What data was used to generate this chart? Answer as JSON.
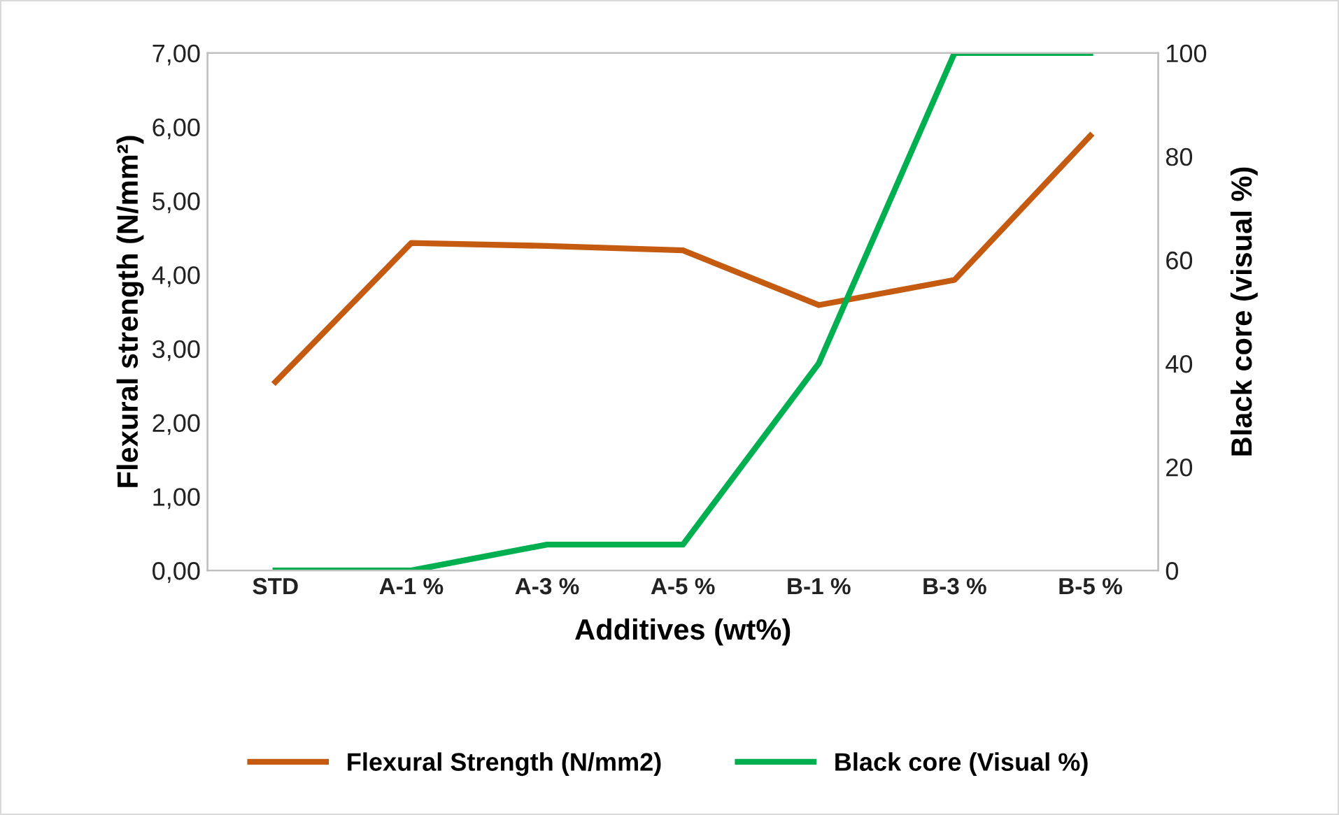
{
  "chart_data": {
    "type": "line",
    "xlabel": "Additives (wt%)",
    "ylabel": "Flexural strength (N/mm²)",
    "y2label": "Black core (visual %)",
    "categories": [
      "STD",
      "A-1 %",
      "A-3 %",
      "A-5 %",
      "B-1 %",
      "B-3 %",
      "B-5 %"
    ],
    "series": [
      {
        "name": "Flexural Strength (N/mm2)",
        "color": "#c55a11",
        "values": [
          2.55,
          4.43,
          4.39,
          4.33,
          3.59,
          3.93,
          5.88
        ]
      },
      {
        "name": "Black core (Visual %)",
        "color": "#00b050",
        "axis": "y2",
        "values": [
          0,
          0,
          5,
          5,
          40,
          100,
          100
        ]
      }
    ],
    "ylim": [
      0,
      7
    ],
    "yticks": [
      {
        "value": 0,
        "label": "0,00"
      },
      {
        "value": 1,
        "label": "1,00"
      },
      {
        "value": 2,
        "label": "2,00"
      },
      {
        "value": 3,
        "label": "3,00"
      },
      {
        "value": 4,
        "label": "4,00"
      },
      {
        "value": 5,
        "label": "5,00"
      },
      {
        "value": 6,
        "label": "6,00"
      },
      {
        "value": 7,
        "label": "7,00"
      }
    ],
    "y2lim": [
      0,
      100
    ],
    "y2ticks": [
      0,
      20,
      40,
      60,
      80,
      100
    ],
    "legend": "bottom",
    "grid": false,
    "marker": "none",
    "line_style": "solid"
  }
}
